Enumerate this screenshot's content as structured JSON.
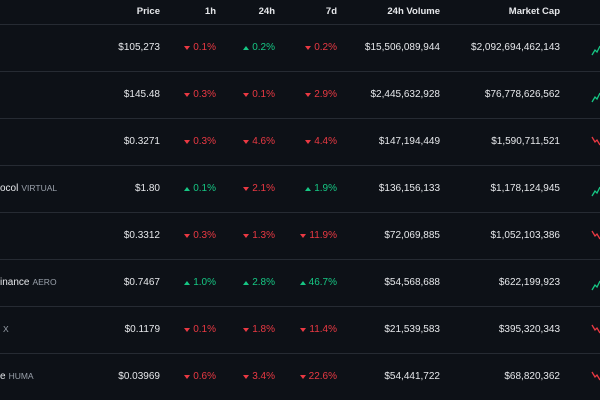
{
  "colors": {
    "background": "#0d1117",
    "divider": "#262b33",
    "text": "#e6e8eb",
    "muted": "#9aa1ab",
    "up": "#16c784",
    "down": "#ea3943"
  },
  "header": {
    "price": "Price",
    "h1": "1h",
    "h24": "24h",
    "d7": "7d",
    "volume": "24h Volume",
    "market_cap": "Market Cap"
  },
  "rows": [
    {
      "name": "",
      "symbol": "",
      "price": "$105,273",
      "h1": {
        "value": "0.1%",
        "dir": "down"
      },
      "h24": {
        "value": "0.2%",
        "dir": "up"
      },
      "d7": {
        "value": "0.2%",
        "dir": "down"
      },
      "volume": "$15,506,089,944",
      "market_cap": "$2,092,694,462,143",
      "trend": "up"
    },
    {
      "name": "",
      "symbol": "",
      "price": "$145.48",
      "h1": {
        "value": "0.3%",
        "dir": "down"
      },
      "h24": {
        "value": "0.1%",
        "dir": "down"
      },
      "d7": {
        "value": "2.9%",
        "dir": "down"
      },
      "volume": "$2,445,632,928",
      "market_cap": "$76,778,626,562",
      "trend": "up"
    },
    {
      "name": "",
      "symbol": "",
      "price": "$0.3271",
      "h1": {
        "value": "0.3%",
        "dir": "down"
      },
      "h24": {
        "value": "4.6%",
        "dir": "down"
      },
      "d7": {
        "value": "4.4%",
        "dir": "down"
      },
      "volume": "$147,194,449",
      "market_cap": "$1,590,711,521",
      "trend": "down"
    },
    {
      "name": "ocol",
      "symbol": "VIRTUAL",
      "price": "$1.80",
      "h1": {
        "value": "0.1%",
        "dir": "up"
      },
      "h24": {
        "value": "2.1%",
        "dir": "down"
      },
      "d7": {
        "value": "1.9%",
        "dir": "up"
      },
      "volume": "$136,156,133",
      "market_cap": "$1,178,124,945",
      "trend": "up"
    },
    {
      "name": "",
      "symbol": "",
      "price": "$0.3312",
      "h1": {
        "value": "0.3%",
        "dir": "down"
      },
      "h24": {
        "value": "1.3%",
        "dir": "down"
      },
      "d7": {
        "value": "11.9%",
        "dir": "down"
      },
      "volume": "$72,069,885",
      "market_cap": "$1,052,103,386",
      "trend": "down"
    },
    {
      "name": "inance",
      "symbol": "AERO",
      "price": "$0.7467",
      "h1": {
        "value": "1.0%",
        "dir": "up"
      },
      "h24": {
        "value": "2.8%",
        "dir": "up"
      },
      "d7": {
        "value": "46.7%",
        "dir": "up"
      },
      "volume": "$54,568,688",
      "market_cap": "$622,199,923",
      "trend": "up"
    },
    {
      "name": "",
      "symbol": "X",
      "price": "$0.1179",
      "h1": {
        "value": "0.1%",
        "dir": "down"
      },
      "h24": {
        "value": "1.8%",
        "dir": "down"
      },
      "d7": {
        "value": "11.4%",
        "dir": "down"
      },
      "volume": "$21,539,583",
      "market_cap": "$395,320,343",
      "trend": "down"
    },
    {
      "name": "e",
      "symbol": "HUMA",
      "price": "$0.03969",
      "h1": {
        "value": "0.6%",
        "dir": "down"
      },
      "h24": {
        "value": "3.4%",
        "dir": "down"
      },
      "d7": {
        "value": "22.6%",
        "dir": "down"
      },
      "volume": "$54,441,722",
      "market_cap": "$68,820,362",
      "trend": "down"
    }
  ]
}
